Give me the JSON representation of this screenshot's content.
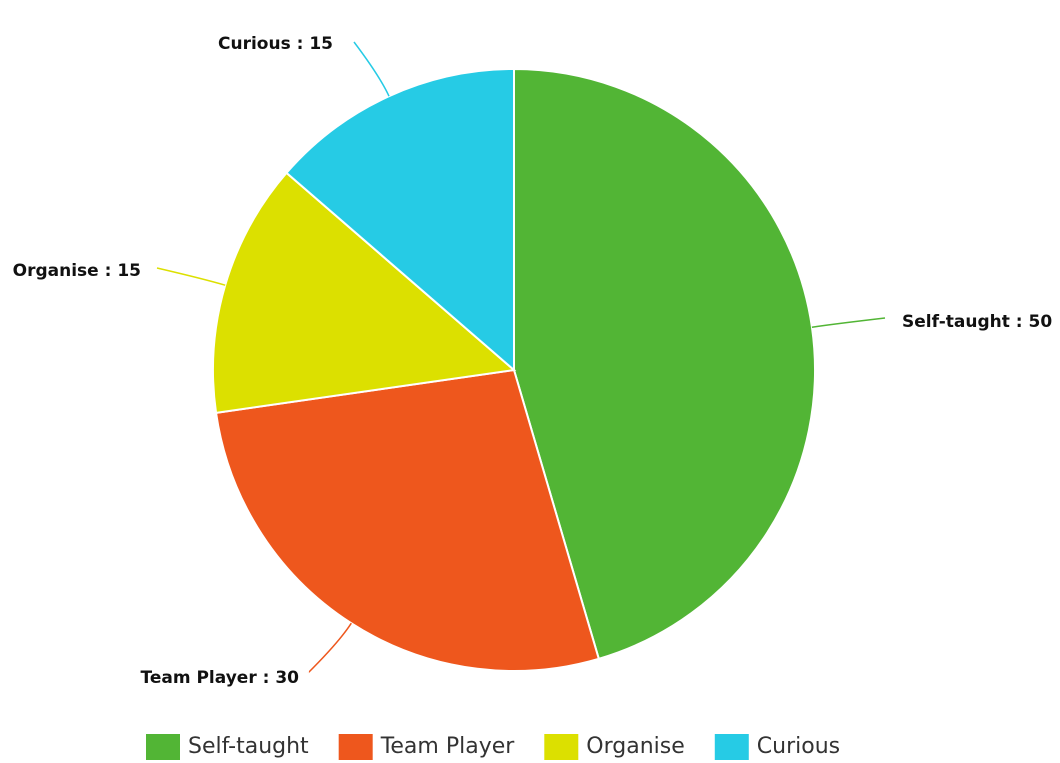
{
  "chart_data": {
    "type": "pie",
    "title": "",
    "slices": [
      {
        "label": "Self-taught",
        "value": 50,
        "color": "#52b535",
        "data_label": "Self-taught : 50"
      },
      {
        "label": "Team Player",
        "value": 30,
        "color": "#ee571d",
        "data_label": "Team Player : 30"
      },
      {
        "label": "Organise",
        "value": 15,
        "color": "#dce000",
        "data_label": "Organise : 15"
      },
      {
        "label": "Curious",
        "value": 15,
        "color": "#26cbe5",
        "data_label": "Curious : 15"
      }
    ],
    "legend_position": "bottom",
    "legend": [
      "Self-taught",
      "Team Player",
      "Organise",
      "Curious"
    ]
  }
}
